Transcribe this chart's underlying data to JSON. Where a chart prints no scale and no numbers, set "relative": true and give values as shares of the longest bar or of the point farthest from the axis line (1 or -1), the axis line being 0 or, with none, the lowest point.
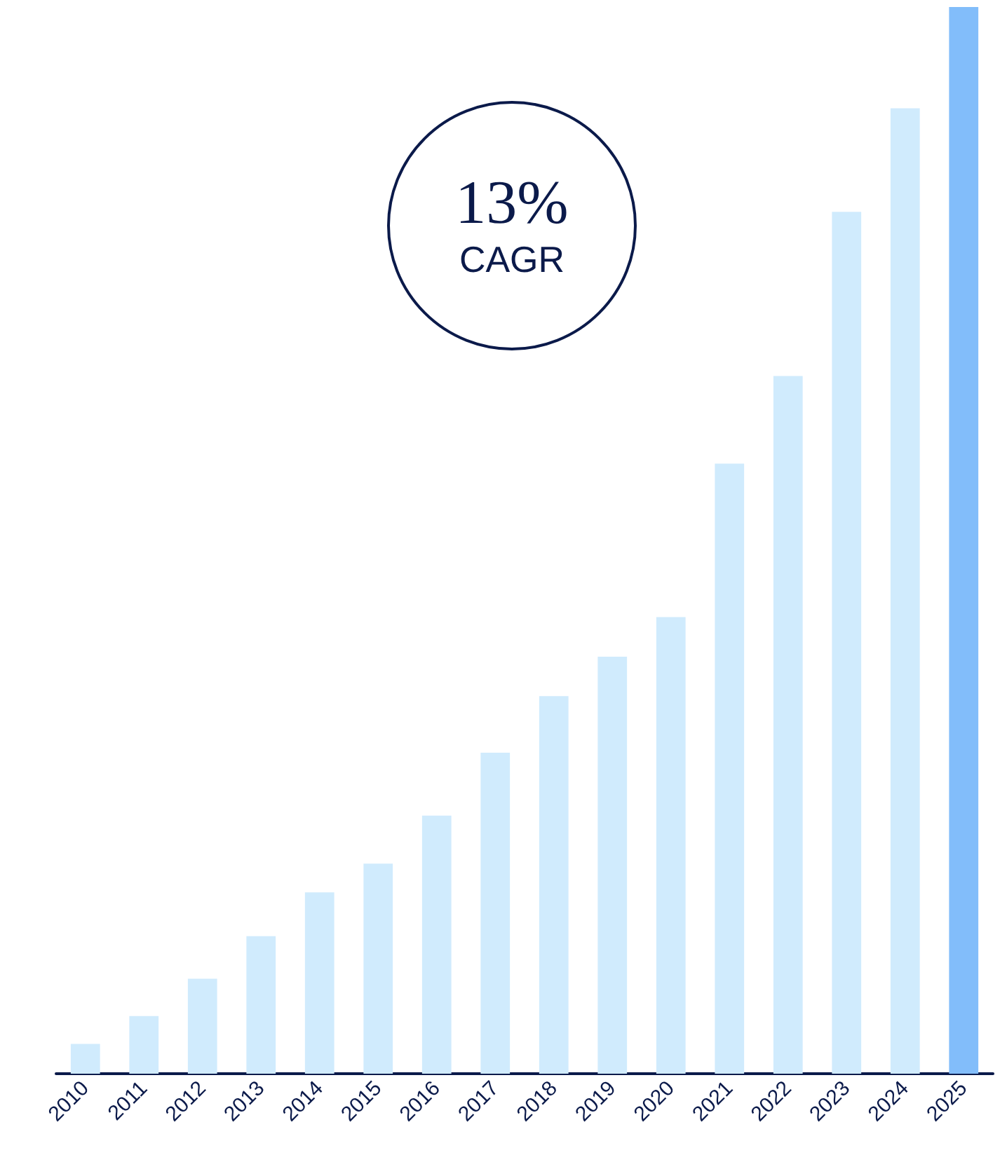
{
  "chart_data": {
    "type": "bar",
    "relative": true,
    "categories": [
      "2010",
      "2011",
      "2012",
      "2013",
      "2014",
      "2015",
      "2016",
      "2017",
      "2018",
      "2019",
      "2020",
      "2021",
      "2022",
      "2023",
      "2024",
      "2025"
    ],
    "values": [
      0.028,
      0.054,
      0.089,
      0.129,
      0.17,
      0.197,
      0.242,
      0.301,
      0.354,
      0.391,
      0.428,
      0.572,
      0.654,
      0.808,
      0.905,
      1
    ],
    "colors": [
      "#d0ebfd",
      "#d0ebfd",
      "#d0ebfd",
      "#d0ebfd",
      "#d0ebfd",
      "#d0ebfd",
      "#d0ebfd",
      "#d0ebfd",
      "#d0ebfd",
      "#d0ebfd",
      "#d0ebfd",
      "#d0ebfd",
      "#d0ebfd",
      "#d0ebfd",
      "#d0ebfd",
      "#82bdfa"
    ],
    "annotations": [
      "13%",
      "CAGR"
    ]
  }
}
